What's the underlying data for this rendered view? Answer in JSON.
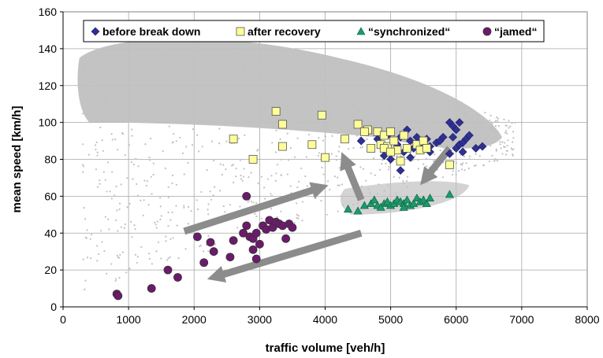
{
  "chart_data": {
    "type": "scatter",
    "xlabel": "traffic volume [veh/h]",
    "ylabel": "mean speed [km/h]",
    "xlim": [
      0,
      8000
    ],
    "ylim": [
      0,
      160
    ],
    "x_ticks": [
      "0",
      "1000",
      "2000",
      "3000",
      "4000",
      "5000",
      "6000",
      "7000",
      "8000"
    ],
    "y_ticks": [
      "0",
      "20",
      "40",
      "60",
      "80",
      "100",
      "120",
      "140",
      "160"
    ],
    "grid": true,
    "legend_position": "top",
    "background_cloud_color": "#c0c0c0",
    "series": [
      {
        "name": "before break  down",
        "marker": "diamond",
        "color": "#2e3192",
        "points": [
          [
            4550,
            90
          ],
          [
            4800,
            91
          ],
          [
            4900,
            82
          ],
          [
            4950,
            93
          ],
          [
            5000,
            80
          ],
          [
            5100,
            88
          ],
          [
            5150,
            74
          ],
          [
            5200,
            84
          ],
          [
            5250,
            96
          ],
          [
            5300,
            90
          ],
          [
            5350,
            86
          ],
          [
            5400,
            92
          ],
          [
            5450,
            89
          ],
          [
            5500,
            88
          ],
          [
            5550,
            91
          ],
          [
            5600,
            87
          ],
          [
            5700,
            89
          ],
          [
            5800,
            92
          ],
          [
            5900,
            100
          ],
          [
            5950,
            98
          ],
          [
            6000,
            86
          ],
          [
            6050,
            88
          ],
          [
            6100,
            84
          ],
          [
            6150,
            91
          ],
          [
            6200,
            93
          ],
          [
            6300,
            86
          ],
          [
            6400,
            87
          ],
          [
            5300,
            81
          ],
          [
            5600,
            84
          ],
          [
            5900,
            83
          ],
          [
            5950,
            92
          ],
          [
            6000,
            96
          ],
          [
            6050,
            100
          ],
          [
            6100,
            89
          ],
          [
            5750,
            90
          ],
          [
            5150,
            92
          ]
        ]
      },
      {
        "name": "after recovery",
        "marker": "square",
        "color": "#ffff99",
        "points": [
          [
            2600,
            91
          ],
          [
            2900,
            80
          ],
          [
            3250,
            106
          ],
          [
            3350,
            99
          ],
          [
            3350,
            87
          ],
          [
            3800,
            88
          ],
          [
            3950,
            104
          ],
          [
            4000,
            81
          ],
          [
            4300,
            91
          ],
          [
            4500,
            99
          ],
          [
            4650,
            96
          ],
          [
            4700,
            86
          ],
          [
            4800,
            95
          ],
          [
            4850,
            88
          ],
          [
            4900,
            93
          ],
          [
            4950,
            87
          ],
          [
            5000,
            95
          ],
          [
            5050,
            90
          ],
          [
            5100,
            85
          ],
          [
            5150,
            79
          ],
          [
            5200,
            93
          ],
          [
            5250,
            86
          ],
          [
            5400,
            88
          ],
          [
            5450,
            85
          ],
          [
            5500,
            90
          ],
          [
            5550,
            86
          ],
          [
            5900,
            77
          ],
          [
            4600,
            95
          ],
          [
            4900,
            86
          ],
          [
            5000,
            84
          ]
        ]
      },
      {
        "name": "“synchronized“",
        "marker": "triangle",
        "color": "#1a9b6c",
        "points": [
          [
            4350,
            53
          ],
          [
            4500,
            52
          ],
          [
            4600,
            55
          ],
          [
            4700,
            56
          ],
          [
            4750,
            58
          ],
          [
            4800,
            55
          ],
          [
            4900,
            56
          ],
          [
            4950,
            57
          ],
          [
            5000,
            55
          ],
          [
            5050,
            56
          ],
          [
            5100,
            58
          ],
          [
            5150,
            57
          ],
          [
            5200,
            56
          ],
          [
            5250,
            58
          ],
          [
            5300,
            55
          ],
          [
            5350,
            56
          ],
          [
            5400,
            59
          ],
          [
            5450,
            57
          ],
          [
            5500,
            58
          ],
          [
            5550,
            56
          ],
          [
            5600,
            59
          ],
          [
            5900,
            61
          ],
          [
            5200,
            54
          ],
          [
            4850,
            54
          ]
        ]
      },
      {
        "name": "“jamed“",
        "marker": "circle",
        "color": "#6d1a6d",
        "points": [
          [
            820,
            7
          ],
          [
            840,
            6
          ],
          [
            1350,
            10
          ],
          [
            1600,
            20
          ],
          [
            1750,
            16
          ],
          [
            2050,
            38
          ],
          [
            2150,
            24
          ],
          [
            2250,
            35
          ],
          [
            2300,
            30
          ],
          [
            2550,
            27
          ],
          [
            2600,
            36
          ],
          [
            2750,
            40
          ],
          [
            2800,
            44
          ],
          [
            2800,
            60
          ],
          [
            2850,
            38
          ],
          [
            2900,
            37
          ],
          [
            2950,
            26
          ],
          [
            2950,
            40
          ],
          [
            3000,
            34
          ],
          [
            3050,
            44
          ],
          [
            3100,
            42
          ],
          [
            3150,
            47
          ],
          [
            3200,
            43
          ],
          [
            3250,
            46
          ],
          [
            3300,
            45
          ],
          [
            3350,
            44
          ],
          [
            3400,
            37
          ],
          [
            3450,
            45
          ],
          [
            3500,
            43
          ],
          [
            2900,
            31
          ]
        ]
      }
    ],
    "arrows": [
      {
        "from": [
          1850,
          41
        ],
        "to": [
          4050,
          66
        ]
      },
      {
        "from": [
          4550,
          58
        ],
        "to": [
          4250,
          84
        ]
      },
      {
        "from": [
          5900,
          86
        ],
        "to": [
          5450,
          66
        ]
      },
      {
        "from": [
          4550,
          40
        ],
        "to": [
          2200,
          15
        ]
      }
    ]
  }
}
